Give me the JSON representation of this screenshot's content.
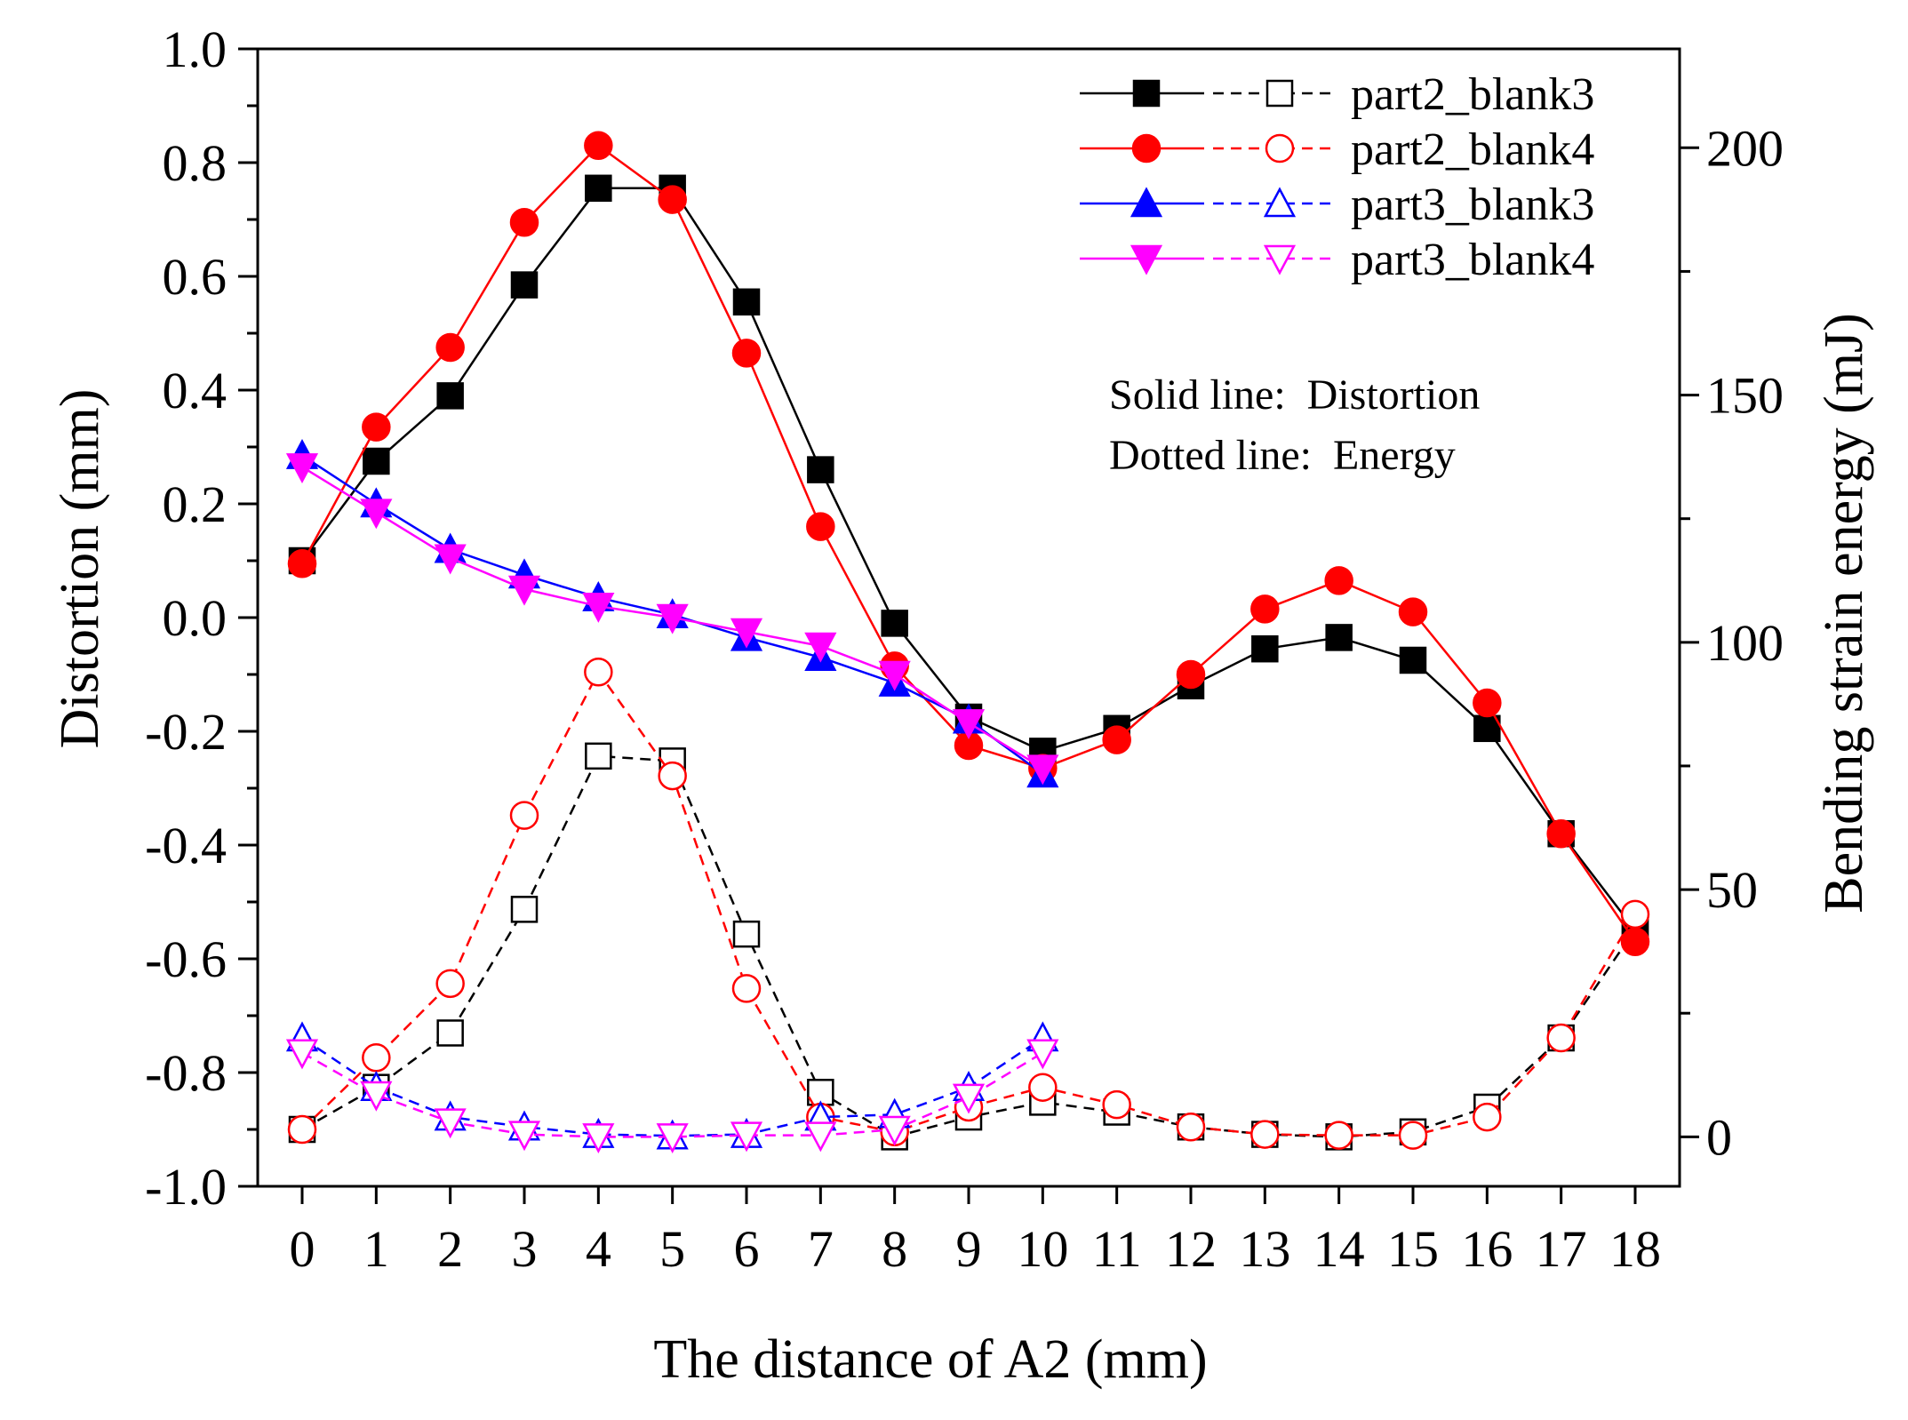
{
  "chart_data": {
    "type": "line",
    "xlabel": "The distance of A2 (mm)",
    "ylabel_left": "Distortion (mm)",
    "ylabel_right": "Bending strain energy (mJ)",
    "x": [
      0,
      1,
      2,
      3,
      4,
      5,
      6,
      7,
      8,
      9,
      10,
      11,
      12,
      13,
      14,
      15,
      16,
      17,
      18
    ],
    "x_ticks": [
      "0",
      "1",
      "2",
      "3",
      "4",
      "5",
      "6",
      "7",
      "8",
      "9",
      "10",
      "11",
      "12",
      "13",
      "14",
      "15",
      "16",
      "17",
      "18"
    ],
    "xlim": [
      -0.6,
      18.6
    ],
    "ylim_left": [
      -1.0,
      1.0
    ],
    "ylim_right": [
      -10,
      220
    ],
    "y_left_ticks": [
      "1.0",
      "0.8",
      "0.6",
      "0.4",
      "0.2",
      "0.0",
      "-0.2",
      "-0.4",
      "-0.6",
      "-0.8",
      "-1.0"
    ],
    "y_left_tick_values": [
      1.0,
      0.8,
      0.6,
      0.4,
      0.2,
      0.0,
      -0.2,
      -0.4,
      -0.6,
      -0.8,
      -1.0
    ],
    "y_right_ticks": [
      "200",
      "150",
      "100",
      "50",
      "0"
    ],
    "y_right_tick_values": [
      200,
      150,
      100,
      50,
      0
    ],
    "legend_position": "top-right",
    "annotation_lines": [
      "Solid line:  Distortion",
      "Dotted line:  Energy"
    ],
    "series": [
      {
        "name": "part2_blank3",
        "color": "#000000",
        "marker": "square",
        "distortion": [
          0.1,
          0.275,
          0.39,
          0.585,
          0.755,
          0.755,
          0.555,
          0.26,
          -0.01,
          -0.175,
          -0.235,
          -0.195,
          -0.12,
          -0.055,
          -0.035,
          -0.075,
          -0.195,
          -0.38,
          -0.55
        ],
        "energy": [
          1.5,
          10,
          21,
          46,
          77,
          76,
          41,
          9,
          0,
          4,
          7,
          5,
          2,
          0.5,
          0,
          1,
          6,
          20,
          42
        ]
      },
      {
        "name": "part2_blank4",
        "color": "#ff0000",
        "marker": "circle",
        "distortion": [
          0.095,
          0.335,
          0.475,
          0.695,
          0.83,
          0.735,
          0.465,
          0.16,
          -0.085,
          -0.225,
          -0.265,
          -0.215,
          -0.1,
          0.015,
          0.065,
          0.01,
          -0.15,
          -0.38,
          -0.57
        ],
        "energy": [
          1.5,
          16,
          31,
          65,
          94,
          73,
          30,
          4,
          1,
          6,
          10,
          6.5,
          2,
          0.5,
          0.3,
          0.3,
          4,
          20,
          45
        ]
      },
      {
        "name": "part3_blank3",
        "color": "#0000ff",
        "marker": "triangle-up",
        "distortion": [
          0.285,
          0.2,
          0.12,
          0.075,
          0.035,
          0.005,
          -0.035,
          -0.07,
          -0.115,
          -0.18,
          -0.275
        ],
        "energy": [
          20,
          10,
          4,
          2,
          0.5,
          0.2,
          0.5,
          4,
          4.5,
          10,
          20
        ]
      },
      {
        "name": "part3_blank4",
        "color": "#ff00ff",
        "marker": "triangle-down",
        "distortion": [
          0.265,
          0.185,
          0.105,
          0.05,
          0.02,
          0.0,
          -0.025,
          -0.05,
          -0.1,
          -0.185,
          -0.265
        ],
        "energy": [
          17,
          8.5,
          3,
          0.5,
          0,
          0,
          0.3,
          0.3,
          1.5,
          8,
          17
        ]
      }
    ]
  }
}
